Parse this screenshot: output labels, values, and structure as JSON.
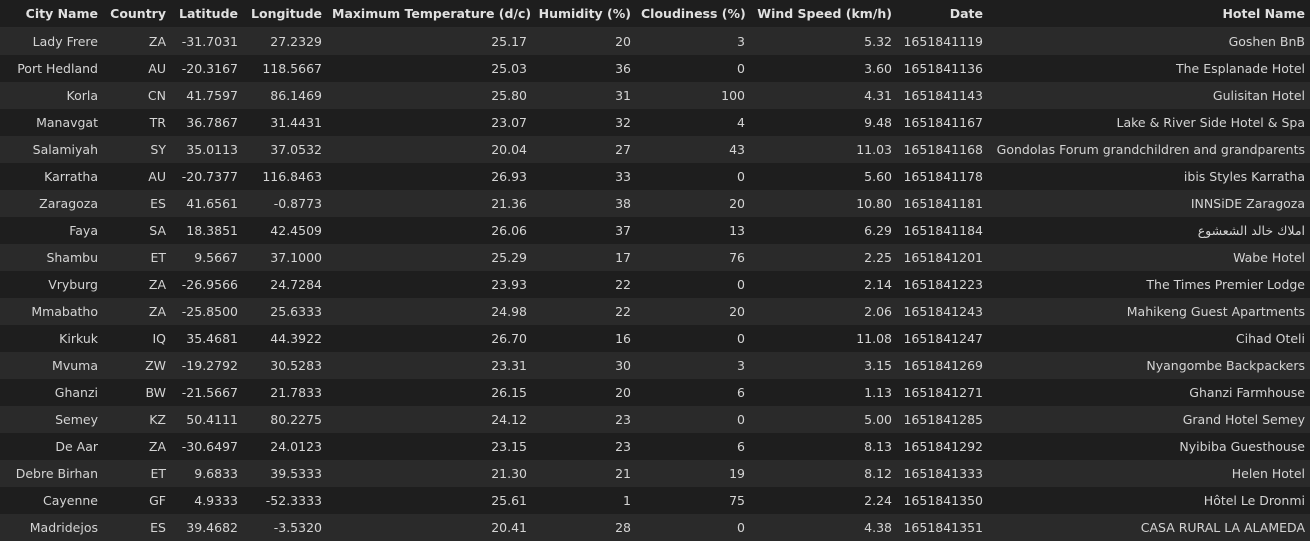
{
  "table": {
    "columns": [
      "City Name",
      "Country",
      "Latitude",
      "Longitude",
      "Maximum Temperature (d/c)",
      "Humidity (%)",
      "Cloudiness (%)",
      "Wind Speed (km/h)",
      "Date",
      "Hotel Name"
    ],
    "rows": [
      [
        "Lady Frere",
        "ZA",
        "-31.7031",
        "27.2329",
        "25.17",
        "20",
        "3",
        "5.32",
        "1651841119",
        "Goshen BnB"
      ],
      [
        "Port Hedland",
        "AU",
        "-20.3167",
        "118.5667",
        "25.03",
        "36",
        "0",
        "3.60",
        "1651841136",
        "The Esplanade Hotel"
      ],
      [
        "Korla",
        "CN",
        "41.7597",
        "86.1469",
        "25.80",
        "31",
        "100",
        "4.31",
        "1651841143",
        "Gulisitan Hotel"
      ],
      [
        "Manavgat",
        "TR",
        "36.7867",
        "31.4431",
        "23.07",
        "32",
        "4",
        "9.48",
        "1651841167",
        "Lake & River Side Hotel & Spa"
      ],
      [
        "Salamiyah",
        "SY",
        "35.0113",
        "37.0532",
        "20.04",
        "27",
        "43",
        "11.03",
        "1651841168",
        "Gondolas Forum grandchildren and grandparents"
      ],
      [
        "Karratha",
        "AU",
        "-20.7377",
        "116.8463",
        "26.93",
        "33",
        "0",
        "5.60",
        "1651841178",
        "ibis Styles Karratha"
      ],
      [
        "Zaragoza",
        "ES",
        "41.6561",
        "-0.8773",
        "21.36",
        "38",
        "20",
        "10.80",
        "1651841181",
        "INNSiDE Zaragoza"
      ],
      [
        "Faya",
        "SA",
        "18.3851",
        "42.4509",
        "26.06",
        "37",
        "13",
        "6.29",
        "1651841184",
        "املاك خالد الشعشوع"
      ],
      [
        "Shambu",
        "ET",
        "9.5667",
        "37.1000",
        "25.29",
        "17",
        "76",
        "2.25",
        "1651841201",
        "Wabe Hotel"
      ],
      [
        "Vryburg",
        "ZA",
        "-26.9566",
        "24.7284",
        "23.93",
        "22",
        "0",
        "2.14",
        "1651841223",
        "The Times Premier Lodge"
      ],
      [
        "Mmabatho",
        "ZA",
        "-25.8500",
        "25.6333",
        "24.98",
        "22",
        "20",
        "2.06",
        "1651841243",
        "Mahikeng Guest Apartments"
      ],
      [
        "Kirkuk",
        "IQ",
        "35.4681",
        "44.3922",
        "26.70",
        "16",
        "0",
        "11.08",
        "1651841247",
        "Cihad Oteli"
      ],
      [
        "Mvuma",
        "ZW",
        "-19.2792",
        "30.5283",
        "23.31",
        "30",
        "3",
        "3.15",
        "1651841269",
        "Nyangombe Backpackers"
      ],
      [
        "Ghanzi",
        "BW",
        "-21.5667",
        "21.7833",
        "26.15",
        "20",
        "6",
        "1.13",
        "1651841271",
        "Ghanzi Farmhouse"
      ],
      [
        "Semey",
        "KZ",
        "50.4111",
        "80.2275",
        "24.12",
        "23",
        "0",
        "5.00",
        "1651841285",
        "Grand Hotel Semey"
      ],
      [
        "De Aar",
        "ZA",
        "-30.6497",
        "24.0123",
        "23.15",
        "23",
        "6",
        "8.13",
        "1651841292",
        "Nyibiba Guesthouse"
      ],
      [
        "Debre Birhan",
        "ET",
        "9.6833",
        "39.5333",
        "21.30",
        "21",
        "19",
        "8.12",
        "1651841333",
        "Helen Hotel"
      ],
      [
        "Cayenne",
        "GF",
        "4.9333",
        "-52.3333",
        "25.61",
        "1",
        "75",
        "2.24",
        "1651841350",
        "Hôtel Le Dronmi"
      ],
      [
        "Madridejos",
        "ES",
        "39.4682",
        "-3.5320",
        "20.41",
        "28",
        "0",
        "4.38",
        "1651841351",
        "CASA RURAL LA ALAMEDA"
      ]
    ]
  }
}
